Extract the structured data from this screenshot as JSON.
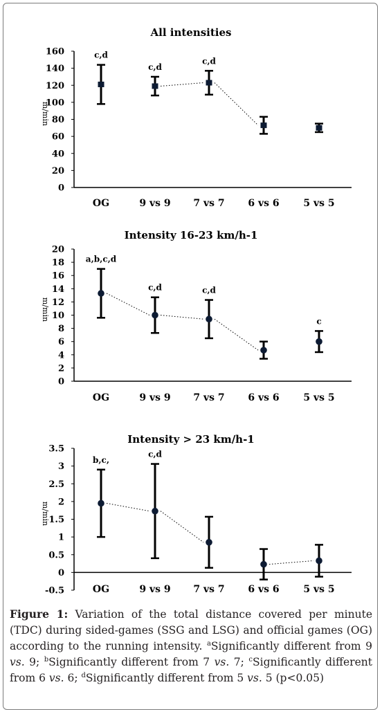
{
  "chart_data": [
    {
      "type": "scatter",
      "title": "All intensities",
      "ylabel": "m/min",
      "categories": [
        "OG",
        "9 vs 9",
        "7 vs 7",
        "6 vs 6",
        "5 vs 5"
      ],
      "ylim": [
        0,
        160
      ],
      "yticks": [
        "0",
        "20",
        "40",
        "60",
        "80",
        "100",
        "120",
        "140",
        "160"
      ],
      "series": [
        {
          "values": [
            121,
            119,
            123,
            73,
            70
          ],
          "error": [
            23,
            11,
            14,
            10,
            5
          ],
          "annotations": [
            "c,d",
            "c,d",
            "c,d",
            "",
            ""
          ]
        }
      ],
      "connected": [
        [
          1,
          2
        ],
        [
          2,
          3
        ]
      ]
    },
    {
      "type": "scatter",
      "title": "Intensity 16-23 km/h-1",
      "ylabel": "m/min",
      "categories": [
        "OG",
        "9 vs 9",
        "7 vs 7",
        "6 vs 6",
        "5 vs 5"
      ],
      "ylim": [
        0,
        20
      ],
      "yticks": [
        "0",
        "2",
        "4",
        "6",
        "8",
        "10",
        "12",
        "14",
        "16",
        "18",
        "20"
      ],
      "series": [
        {
          "values": [
            13.3,
            10.0,
            9.4,
            4.7,
            6.0
          ],
          "error": [
            3.7,
            2.7,
            2.9,
            1.3,
            1.6
          ],
          "annotations": [
            "a,b,c,d",
            "c,d",
            "c,d",
            "",
            "c"
          ]
        }
      ],
      "connected": [
        [
          0,
          1
        ],
        [
          1,
          2
        ],
        [
          2,
          3
        ]
      ]
    },
    {
      "type": "scatter",
      "title": "Intensity > 23 km/h-1",
      "ylabel": "m/min",
      "categories": [
        "OG",
        "9 vs 9",
        "7 vs 7",
        "6 vs 6",
        "5 vs 5"
      ],
      "ylim": [
        -0.5,
        3.5
      ],
      "yticks": [
        "-0.5",
        "0",
        "0.5",
        "1",
        "1.5",
        "2",
        "2.5",
        "3",
        "3.5"
      ],
      "series": [
        {
          "values": [
            1.95,
            1.73,
            0.85,
            0.23,
            0.33
          ],
          "error": [
            0.95,
            1.33,
            0.72,
            0.43,
            0.45
          ],
          "annotations": [
            "b,c,",
            "c,d",
            "",
            "",
            ""
          ]
        }
      ],
      "connected": [
        [
          0,
          1
        ],
        [
          1,
          2
        ],
        [
          3,
          4
        ]
      ]
    }
  ],
  "caption": {
    "label": "Figure 1:",
    "text_1": " Variation of the total distance covered per minute (TDC) during sided-games (SSG and LSG) and official games (OG) according to the running intensity. ",
    "sup_a": "a",
    "text_a": "Significantly different from 9 ",
    "vs": "vs.",
    "text_a2": " 9; ",
    "sup_b": "b",
    "text_b": "Significantly different from 7 ",
    "text_b2": " 7; ",
    "sup_c": "c",
    "text_c": "Significantly different from 6 ",
    "text_c2": " 6; ",
    "sup_d": "d",
    "text_d": "Significantly different from 5 ",
    "text_d2": " 5 (p<0.05)"
  },
  "colors": {
    "marker": "#0d1b33",
    "text": "#000000",
    "caption": "#231f20"
  }
}
